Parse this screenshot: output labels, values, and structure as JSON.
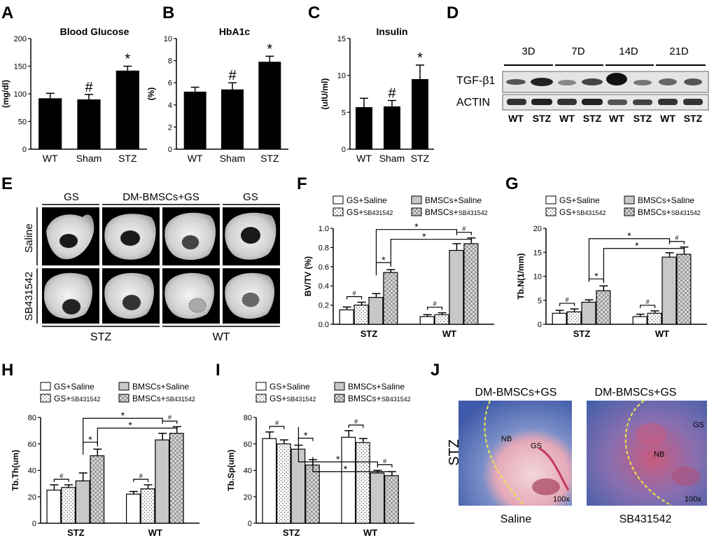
{
  "panels": {
    "A": {
      "letter": "A",
      "title": "Blood Glucose",
      "ylabel": "(mg/dl)",
      "sig": [
        "",
        "#",
        "*"
      ]
    },
    "B": {
      "letter": "B",
      "title": "HbA1c",
      "ylabel": "(%)",
      "sig": [
        "",
        "#",
        "*"
      ]
    },
    "C": {
      "letter": "C",
      "title": "Insulin",
      "ylabel": "(uIU/ml)",
      "sig": [
        "",
        "#",
        "*"
      ]
    },
    "D": {
      "letter": "D",
      "days": [
        "3D",
        "7D",
        "14D",
        "21D"
      ],
      "rows": [
        "TGF-β1",
        "ACTIN"
      ],
      "lanes": [
        "WT",
        "STZ",
        "WT",
        "STZ",
        "WT",
        "STZ",
        "WT",
        "STZ"
      ]
    },
    "E": {
      "letter": "E",
      "col_headers": [
        "GS",
        "DM-BMSCs+GS",
        "GS"
      ],
      "row_labels": [
        "Saline",
        "SB431542"
      ],
      "bottom_labels": [
        "STZ",
        "WT"
      ]
    },
    "F": {
      "letter": "F",
      "ylabel": "BV/TV (%)"
    },
    "G": {
      "letter": "G",
      "ylabel": "Tb.N(1/mm)"
    },
    "H": {
      "letter": "H",
      "ylabel": "Tb.Th(um)"
    },
    "I": {
      "letter": "I",
      "ylabel": "Tb.Sp(um)"
    },
    "J": {
      "letter": "J",
      "titles": [
        "DM-BMSCs+GS",
        "DM-BMSCs+GS"
      ],
      "row_label": "STZ",
      "bottom_labels": [
        "Saline",
        "SB431542"
      ],
      "mag": [
        "100x",
        "100x"
      ],
      "annot": [
        "NB",
        "GS",
        "NB",
        "GS"
      ]
    }
  },
  "legend": {
    "gs_saline": "GS+Saline",
    "gs_sb": "GS+",
    "sb_small": "SB431542",
    "bmsc_saline": "BMSCs+Saline",
    "bmsc_sb": "BMSCs+"
  },
  "colors": {
    "black_bar": "#000000",
    "grey_bar": "#c8c8c8",
    "white_bar": "#ffffff",
    "dashed": "#e0e020"
  },
  "chart_data": [
    {
      "id": "A",
      "type": "bar",
      "title": "Blood Glucose",
      "ylabel": "(mg/dl)",
      "categories": [
        "WT",
        "Sham",
        "STZ"
      ],
      "values": [
        92,
        90,
        142
      ],
      "errors": [
        9,
        9,
        8
      ],
      "ylim": [
        0,
        200
      ],
      "yticks": [
        0,
        50,
        100,
        150,
        200
      ]
    },
    {
      "id": "B",
      "type": "bar",
      "title": "HbA1c",
      "ylabel": "(%)",
      "categories": [
        "WT",
        "Sham",
        "STZ"
      ],
      "values": [
        5.2,
        5.4,
        7.9
      ],
      "errors": [
        0.4,
        0.6,
        0.5
      ],
      "ylim": [
        0,
        10
      ],
      "yticks": [
        0,
        2,
        4,
        6,
        8,
        10
      ]
    },
    {
      "id": "C",
      "type": "bar",
      "title": "Insulin",
      "ylabel": "(uIU/ml)",
      "categories": [
        "WT",
        "Sham",
        "STZ"
      ],
      "values": [
        5.7,
        5.8,
        9.5
      ],
      "errors": [
        1.2,
        0.8,
        1.9
      ],
      "ylim": [
        0,
        15
      ],
      "yticks": [
        0,
        5,
        10,
        15
      ]
    },
    {
      "id": "F",
      "type": "bar",
      "ylabel": "BV/TV (%)",
      "categories": [
        "STZ",
        "WT"
      ],
      "series": [
        {
          "name": "GS+Saline",
          "values": [
            0.15,
            0.08
          ],
          "errors": [
            0.03,
            0.02
          ]
        },
        {
          "name": "GS+SB431542",
          "values": [
            0.2,
            0.1
          ],
          "errors": [
            0.03,
            0.02
          ]
        },
        {
          "name": "BMSCs+Saline",
          "values": [
            0.28,
            0.77
          ],
          "errors": [
            0.04,
            0.07
          ]
        },
        {
          "name": "BMSCs+SB431542",
          "values": [
            0.54,
            0.84
          ],
          "errors": [
            0.03,
            0.06
          ]
        }
      ],
      "ylim": [
        0,
        1.0
      ],
      "yticks": [
        "0.0",
        "0.2",
        "0.4",
        "0.6",
        "0.8",
        "1.0"
      ]
    },
    {
      "id": "G",
      "type": "bar",
      "ylabel": "Tb.N(1/mm)",
      "categories": [
        "STZ",
        "WT"
      ],
      "series": [
        {
          "name": "GS+Saline",
          "values": [
            2.3,
            1.6
          ],
          "errors": [
            0.6,
            0.5
          ]
        },
        {
          "name": "GS+SB431542",
          "values": [
            2.6,
            2.3
          ],
          "errors": [
            0.6,
            0.5
          ]
        },
        {
          "name": "BMSCs+Saline",
          "values": [
            4.6,
            14.0
          ],
          "errors": [
            0.5,
            0.9
          ]
        },
        {
          "name": "BMSCs+SB431542",
          "values": [
            7.0,
            14.6
          ],
          "errors": [
            1.0,
            1.5
          ]
        }
      ],
      "ylim": [
        0,
        20
      ],
      "yticks": [
        0,
        5,
        10,
        15,
        20
      ]
    },
    {
      "id": "H",
      "type": "bar",
      "ylabel": "Tb.Th(um)",
      "categories": [
        "STZ",
        "WT"
      ],
      "series": [
        {
          "name": "GS+Saline",
          "values": [
            25,
            22
          ],
          "errors": [
            4,
            2
          ]
        },
        {
          "name": "GS+SB431542",
          "values": [
            27,
            26
          ],
          "errors": [
            2,
            3
          ]
        },
        {
          "name": "BMSCs+Saline",
          "values": [
            32,
            63
          ],
          "errors": [
            6,
            5
          ]
        },
        {
          "name": "BMSCs+SB431542",
          "values": [
            51,
            68
          ],
          "errors": [
            5,
            5
          ]
        }
      ],
      "ylim": [
        0,
        80
      ],
      "yticks": [
        0,
        20,
        40,
        60,
        80
      ]
    },
    {
      "id": "I",
      "type": "bar",
      "ylabel": "Tb.Sp(um)",
      "categories": [
        "STZ",
        "WT"
      ],
      "series": [
        {
          "name": "GS+Saline",
          "values": [
            64,
            65
          ],
          "errors": [
            5,
            5
          ]
        },
        {
          "name": "GS+SB431542",
          "values": [
            60,
            61
          ],
          "errors": [
            3,
            3
          ]
        },
        {
          "name": "BMSCs+Saline",
          "values": [
            56,
            38
          ],
          "errors": [
            3,
            2
          ]
        },
        {
          "name": "BMSCs+SB431542",
          "values": [
            44,
            36
          ],
          "errors": [
            4,
            3
          ]
        }
      ],
      "ylim": [
        0,
        80
      ],
      "yticks": [
        0,
        20,
        40,
        60,
        80
      ]
    }
  ]
}
